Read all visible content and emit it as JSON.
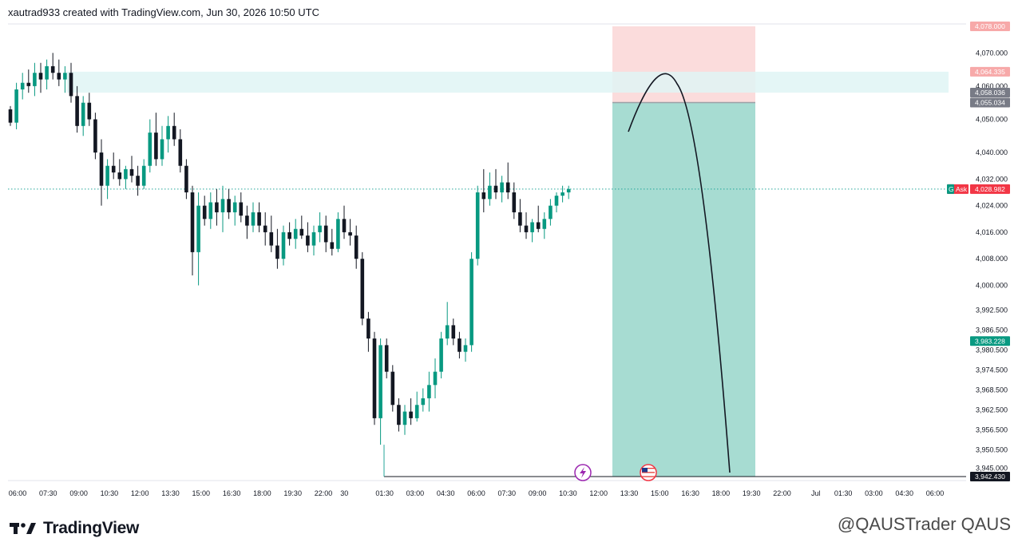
{
  "header": {
    "caption": "xautrad933 created with TradingView.com, Jun 30, 2026 10:50 UTC"
  },
  "footer": {
    "logo_text": "TradingView",
    "watermark": "@QAUSTrader QAUS"
  },
  "chart_data": {
    "type": "candlestick",
    "symbol_hint": "XAUUSD",
    "y_ticks": [
      4078.0,
      4070.0,
      4064.335,
      4060.0,
      4058.036,
      4055.034,
      4050.0,
      4040.0,
      4032.0,
      4028.982,
      4024.0,
      4016.0,
      4008.0,
      4000.0,
      3992.5,
      3986.5,
      3983.228,
      3980.5,
      3974.5,
      3968.5,
      3962.5,
      3956.5,
      3950.5,
      3945.0,
      3942.43
    ],
    "y_axis_labels": [
      "4,078.000",
      "4,070.000",
      "4,060.000",
      "4,050.000",
      "4,040.000",
      "4,032.000",
      "4,024.000",
      "4,016.000",
      "4,008.000",
      "4,000.000",
      "3,992.500",
      "3,986.500",
      "3,980.500",
      "3,974.500",
      "3,968.500",
      "3,962.500",
      "3,956.500",
      "3,950.500",
      "3,945.000"
    ],
    "price_badges": [
      {
        "text": "4,078.000",
        "color": "#f7a9a9",
        "text_color": "#c2185b",
        "value": 4078.0
      },
      {
        "text": "4,064.335",
        "color": "#f7a9a9",
        "text_color": "#c2185b",
        "value": 4064.335
      },
      {
        "text": "4,058.036",
        "color": "#787b86",
        "text_color": "#ffffff",
        "value": 4058.036
      },
      {
        "text": "4,055.034",
        "color": "#787b86",
        "text_color": "#ffffff",
        "value": 4055.034
      },
      {
        "text": "4,028.982",
        "color": "#f23645",
        "text_color": "#ffffff",
        "value": 4028.982
      },
      {
        "text": "3,983.228",
        "color": "#089981",
        "text_color": "#ffffff",
        "value": 3983.228
      },
      {
        "text": "3,942.430",
        "color": "#131722",
        "text_color": "#ffffff",
        "value": 3942.43
      }
    ],
    "ask_label": {
      "g": "G",
      "text": "Ask"
    },
    "x_labels": [
      "06:00",
      "07:30",
      "09:00",
      "10:30",
      "12:00",
      "13:30",
      "15:00",
      "16:30",
      "18:00",
      "19:30",
      "22:00",
      "30",
      "01:30",
      "03:00",
      "04:30",
      "06:00",
      "07:30",
      "09:00",
      "10:30",
      "12:00",
      "13:30",
      "15:00",
      "16:30",
      "18:00",
      "19:30",
      "22:00",
      "Jul",
      "01:30",
      "03:00",
      "04:30",
      "06:00"
    ],
    "ylim": [
      3942.43,
      4078.0
    ],
    "zones": {
      "resistance_band": [
        4058.036,
        4064.335
      ],
      "position_stop": [
        4055.034,
        4078.0
      ],
      "position_target": [
        3942.43,
        4055.034
      ],
      "entry": 4055.034
    },
    "ask_line": 4028.982,
    "candles": [
      [
        4053,
        4054,
        4048,
        4049
      ],
      [
        4049,
        4061,
        4047,
        4059
      ],
      [
        4059,
        4064,
        4056,
        4061
      ],
      [
        4061,
        4065,
        4058,
        4060
      ],
      [
        4060,
        4067,
        4057,
        4064
      ],
      [
        4064,
        4067,
        4058,
        4062
      ],
      [
        4062,
        4068,
        4059,
        4066
      ],
      [
        4066,
        4070,
        4062,
        4064
      ],
      [
        4064,
        4068,
        4060,
        4062
      ],
      [
        4062,
        4066,
        4058,
        4064
      ],
      [
        4064,
        4067,
        4055,
        4057
      ],
      [
        4057,
        4060,
        4046,
        4048
      ],
      [
        4048,
        4057,
        4045,
        4055
      ],
      [
        4055,
        4058,
        4048,
        4050
      ],
      [
        4050,
        4052,
        4038,
        4040
      ],
      [
        4040,
        4044,
        4024,
        4030
      ],
      [
        4030,
        4038,
        4026,
        4036
      ],
      [
        4036,
        4040,
        4032,
        4034
      ],
      [
        4034,
        4038,
        4030,
        4032
      ],
      [
        4032,
        4036,
        4029,
        4035
      ],
      [
        4035,
        4039,
        4031,
        4033
      ],
      [
        4033,
        4036,
        4027,
        4030
      ],
      [
        4030,
        4038,
        4029,
        4036
      ],
      [
        4036,
        4050,
        4034,
        4046
      ],
      [
        4046,
        4052,
        4036,
        4038
      ],
      [
        4038,
        4048,
        4036,
        4044
      ],
      [
        4044,
        4051,
        4040,
        4048
      ],
      [
        4048,
        4052,
        4042,
        4044
      ],
      [
        4044,
        4047,
        4034,
        4036
      ],
      [
        4036,
        4038,
        4026,
        4028
      ],
      [
        4028,
        4030,
        4003,
        4010
      ],
      [
        4010,
        4028,
        4000,
        4024
      ],
      [
        4024,
        4027,
        4018,
        4020
      ],
      [
        4020,
        4028,
        4017,
        4025
      ],
      [
        4025,
        4029,
        4018,
        4022
      ],
      [
        4022,
        4030,
        4016,
        4026
      ],
      [
        4026,
        4029,
        4020,
        4022
      ],
      [
        4022,
        4027,
        4018,
        4025
      ],
      [
        4025,
        4028,
        4019,
        4021
      ],
      [
        4021,
        4024,
        4014,
        4018
      ],
      [
        4018,
        4025,
        4016,
        4022
      ],
      [
        4022,
        4025,
        4016,
        4018
      ],
      [
        4018,
        4022,
        4012,
        4016
      ],
      [
        4016,
        4021,
        4010,
        4012
      ],
      [
        4012,
        4017,
        4005,
        4008
      ],
      [
        4008,
        4018,
        4006,
        4016
      ],
      [
        4016,
        4019,
        4012,
        4014
      ],
      [
        4014,
        4020,
        4011,
        4017
      ],
      [
        4017,
        4021,
        4014,
        4015
      ],
      [
        4015,
        4019,
        4010,
        4012
      ],
      [
        4012,
        4018,
        4009,
        4016
      ],
      [
        4016,
        4022,
        4013,
        4018
      ],
      [
        4018,
        4021,
        4010,
        4013
      ],
      [
        4013,
        4017,
        4009,
        4011
      ],
      [
        4011,
        4022,
        4010,
        4020
      ],
      [
        4020,
        4024,
        4014,
        4016
      ],
      [
        4016,
        4020,
        4012,
        4015
      ],
      [
        4015,
        4018,
        4005,
        4008
      ],
      [
        4008,
        4010,
        3988,
        3990
      ],
      [
        3990,
        3992,
        3980,
        3984
      ],
      [
        3984,
        3986,
        3958,
        3960
      ],
      [
        3960,
        3984,
        3952,
        3982
      ],
      [
        3982,
        3984,
        3972,
        3974
      ],
      [
        3974,
        3976,
        3962,
        3964
      ],
      [
        3964,
        3966,
        3956,
        3958
      ],
      [
        3958,
        3964,
        3955,
        3962
      ],
      [
        3962,
        3966,
        3958,
        3960
      ],
      [
        3960,
        3968,
        3959,
        3964
      ],
      [
        3964,
        3969,
        3962,
        3966
      ],
      [
        3966,
        3974,
        3962,
        3970
      ],
      [
        3970,
        3978,
        3966,
        3974
      ],
      [
        3974,
        3986,
        3972,
        3984
      ],
      [
        3984,
        3995,
        3982,
        3988
      ],
      [
        3988,
        3990,
        3982,
        3984
      ],
      [
        3984,
        3986,
        3978,
        3980
      ],
      [
        3980,
        3984,
        3977,
        3982
      ],
      [
        3982,
        4010,
        3980,
        4008
      ],
      [
        4008,
        4030,
        4006,
        4028
      ],
      [
        4028,
        4035,
        4022,
        4026
      ],
      [
        4026,
        4034,
        4024,
        4030
      ],
      [
        4030,
        4035,
        4026,
        4028
      ],
      [
        4028,
        4033,
        4025,
        4031
      ],
      [
        4031,
        4037,
        4026,
        4028
      ],
      [
        4028,
        4031,
        4020,
        4022
      ],
      [
        4022,
        4026,
        4016,
        4018
      ],
      [
        4018,
        4022,
        4014,
        4016
      ],
      [
        4016,
        4020,
        4013,
        4019
      ],
      [
        4019,
        4024,
        4016,
        4017
      ],
      [
        4017,
        4022,
        4014,
        4020
      ],
      [
        4020,
        4026,
        4018,
        4024
      ],
      [
        4024,
        4028,
        4022,
        4027
      ],
      [
        4027,
        4030,
        4025,
        4028
      ],
      [
        4028,
        4030,
        4026,
        4029
      ]
    ],
    "curve_note": "projected arc drawn from entry zone down to 3,942.430",
    "event_icons": [
      {
        "name": "lightning-icon"
      },
      {
        "name": "us-flag-icon"
      }
    ]
  }
}
